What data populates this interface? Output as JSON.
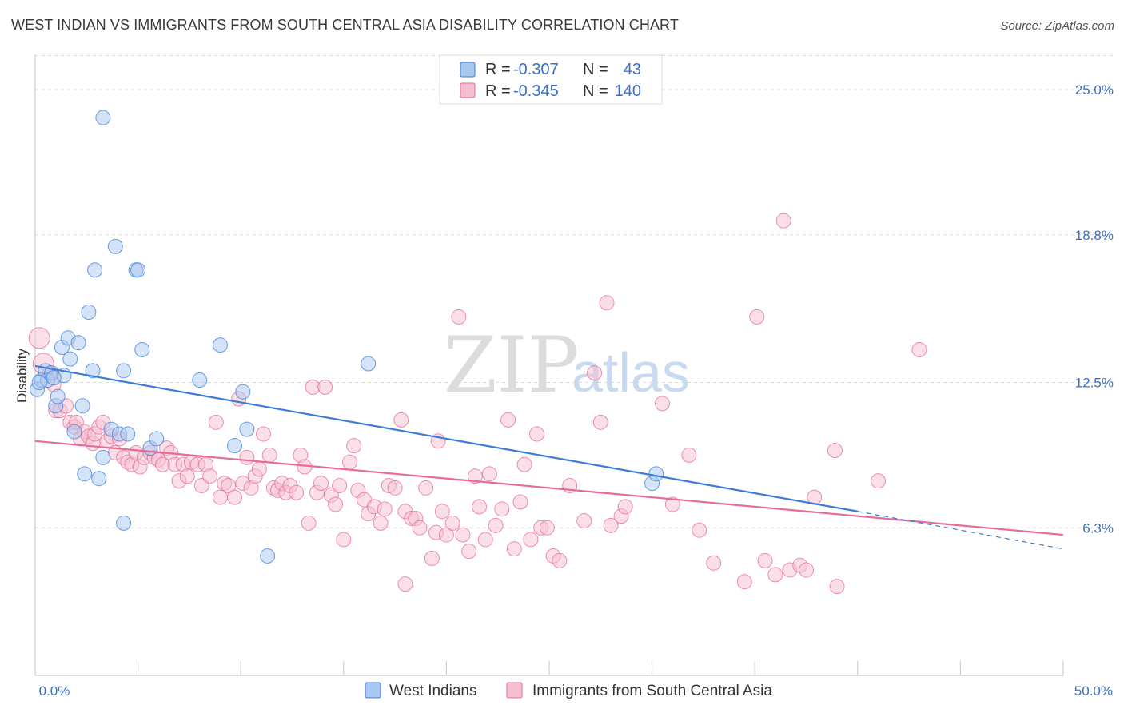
{
  "header": {
    "title": "WEST INDIAN VS IMMIGRANTS FROM SOUTH CENTRAL ASIA DISABILITY CORRELATION CHART",
    "source": "Source: ZipAtlas.com"
  },
  "watermark": {
    "zip": "ZIP",
    "atlas": "atlas"
  },
  "legend": {
    "items": [
      {
        "r_label": "R =",
        "r_value": "-0.307",
        "n_label": "N =",
        "n_value": "43"
      },
      {
        "r_label": "R =",
        "r_value": "-0.345",
        "n_label": "N =",
        "n_value": "140"
      }
    ]
  },
  "chart_data": {
    "type": "scatter",
    "title": "WEST INDIAN VS IMMIGRANTS FROM SOUTH CENTRAL ASIA DISABILITY CORRELATION CHART",
    "xlabel": "",
    "ylabel": "Disability",
    "xlim": [
      0,
      50
    ],
    "ylim": [
      0,
      26.5
    ],
    "x_tick_labels": [
      "0.0%",
      "50.0%"
    ],
    "y_ticks": [
      6.3,
      12.5,
      18.8,
      25.0
    ],
    "y_tick_labels": [
      "6.3%",
      "12.5%",
      "18.8%",
      "25.0%"
    ],
    "grid": true,
    "legend_position": "top-center",
    "colors": {
      "west_indians": "#3b7dd8",
      "south_central_asia": "#e86a96"
    },
    "series": [
      {
        "name": "West Indians",
        "color": "#3b7dd8",
        "fill": "#a9c8ef",
        "trend": {
          "x": [
            0,
            40
          ],
          "y": [
            13.2,
            7.0
          ],
          "dashed_extension_to": [
            50,
            5.4
          ]
        },
        "points": [
          [
            0.1,
            12.2
          ],
          [
            0.3,
            12.6
          ],
          [
            0.5,
            13.0
          ],
          [
            0.6,
            12.6
          ],
          [
            0.8,
            12.9
          ],
          [
            1.0,
            11.5
          ],
          [
            1.1,
            11.9
          ],
          [
            1.3,
            14.0
          ],
          [
            1.4,
            12.8
          ],
          [
            1.6,
            14.4
          ],
          [
            1.7,
            13.5
          ],
          [
            1.9,
            10.4
          ],
          [
            2.1,
            14.2
          ],
          [
            2.3,
            11.5
          ],
          [
            2.4,
            8.6
          ],
          [
            2.6,
            15.5
          ],
          [
            2.8,
            13.0
          ],
          [
            2.9,
            17.3
          ],
          [
            3.1,
            8.4
          ],
          [
            3.3,
            9.3
          ],
          [
            3.3,
            23.8
          ],
          [
            3.7,
            10.5
          ],
          [
            3.9,
            18.3
          ],
          [
            4.1,
            10.3
          ],
          [
            4.3,
            13.0
          ],
          [
            4.3,
            6.5
          ],
          [
            4.5,
            10.3
          ],
          [
            4.9,
            17.3
          ],
          [
            5.0,
            17.3
          ],
          [
            5.2,
            13.9
          ],
          [
            5.6,
            9.7
          ],
          [
            5.9,
            10.1
          ],
          [
            8.0,
            12.6
          ],
          [
            9.0,
            14.1
          ],
          [
            9.7,
            9.8
          ],
          [
            10.1,
            12.1
          ],
          [
            10.3,
            10.5
          ],
          [
            11.3,
            5.1
          ],
          [
            16.2,
            13.3
          ],
          [
            30.0,
            8.2
          ],
          [
            30.2,
            8.6
          ],
          [
            0.2,
            12.5
          ],
          [
            0.9,
            12.7
          ]
        ]
      },
      {
        "name": "Immigrants from South Central Asia",
        "color": "#e86a96",
        "fill": "#f6bfd1",
        "trend": {
          "x": [
            0,
            50
          ],
          "y": [
            10.0,
            6.0
          ]
        },
        "points": [
          [
            0.2,
            14.4
          ],
          [
            0.4,
            13.3
          ],
          [
            0.7,
            12.9
          ],
          [
            0.9,
            12.4
          ],
          [
            1.0,
            11.3
          ],
          [
            1.2,
            11.3
          ],
          [
            1.5,
            11.5
          ],
          [
            1.7,
            10.8
          ],
          [
            1.9,
            10.6
          ],
          [
            2.0,
            10.8
          ],
          [
            2.2,
            10.1
          ],
          [
            2.4,
            10.4
          ],
          [
            2.6,
            10.2
          ],
          [
            2.8,
            9.9
          ],
          [
            2.9,
            10.3
          ],
          [
            3.1,
            10.6
          ],
          [
            3.3,
            10.8
          ],
          [
            3.5,
            10.0
          ],
          [
            3.7,
            10.2
          ],
          [
            3.9,
            9.5
          ],
          [
            4.1,
            10.1
          ],
          [
            4.3,
            9.3
          ],
          [
            4.5,
            9.1
          ],
          [
            4.7,
            9.0
          ],
          [
            4.9,
            9.5
          ],
          [
            5.1,
            8.9
          ],
          [
            5.3,
            9.3
          ],
          [
            5.6,
            9.5
          ],
          [
            5.8,
            9.3
          ],
          [
            6.0,
            9.2
          ],
          [
            6.2,
            9.0
          ],
          [
            6.4,
            9.7
          ],
          [
            6.6,
            9.5
          ],
          [
            6.8,
            9.0
          ],
          [
            7.0,
            8.3
          ],
          [
            7.2,
            9.0
          ],
          [
            7.4,
            8.5
          ],
          [
            7.6,
            9.1
          ],
          [
            7.9,
            9.0
          ],
          [
            8.1,
            8.1
          ],
          [
            8.3,
            9.0
          ],
          [
            8.5,
            8.5
          ],
          [
            8.8,
            10.8
          ],
          [
            9.0,
            7.6
          ],
          [
            9.2,
            8.2
          ],
          [
            9.4,
            8.1
          ],
          [
            9.7,
            7.6
          ],
          [
            9.9,
            11.8
          ],
          [
            10.1,
            8.2
          ],
          [
            10.3,
            9.3
          ],
          [
            10.5,
            8.0
          ],
          [
            10.7,
            8.5
          ],
          [
            10.9,
            8.8
          ],
          [
            11.1,
            10.3
          ],
          [
            11.4,
            9.4
          ],
          [
            11.6,
            8.0
          ],
          [
            11.8,
            7.9
          ],
          [
            12.0,
            8.2
          ],
          [
            12.2,
            7.8
          ],
          [
            12.4,
            8.1
          ],
          [
            12.7,
            7.8
          ],
          [
            12.9,
            9.4
          ],
          [
            13.1,
            8.9
          ],
          [
            13.3,
            6.5
          ],
          [
            13.5,
            12.3
          ],
          [
            13.7,
            7.8
          ],
          [
            13.9,
            8.2
          ],
          [
            14.1,
            12.3
          ],
          [
            14.4,
            7.7
          ],
          [
            14.6,
            7.3
          ],
          [
            14.8,
            8.1
          ],
          [
            15.0,
            5.8
          ],
          [
            15.3,
            9.1
          ],
          [
            15.5,
            9.8
          ],
          [
            15.7,
            7.9
          ],
          [
            16.0,
            7.5
          ],
          [
            16.2,
            6.9
          ],
          [
            16.5,
            7.2
          ],
          [
            16.8,
            6.5
          ],
          [
            17.0,
            7.1
          ],
          [
            17.2,
            8.1
          ],
          [
            17.5,
            8.0
          ],
          [
            17.8,
            10.9
          ],
          [
            18.0,
            7.0
          ],
          [
            18.3,
            6.7
          ],
          [
            18.5,
            6.7
          ],
          [
            18.7,
            6.3
          ],
          [
            19.0,
            8.0
          ],
          [
            19.3,
            5.0
          ],
          [
            19.5,
            6.1
          ],
          [
            19.6,
            10.0
          ],
          [
            19.8,
            7.0
          ],
          [
            20.0,
            6.0
          ],
          [
            20.3,
            6.5
          ],
          [
            20.6,
            15.3
          ],
          [
            20.8,
            6.0
          ],
          [
            21.1,
            5.3
          ],
          [
            21.4,
            8.5
          ],
          [
            21.6,
            7.2
          ],
          [
            21.9,
            5.8
          ],
          [
            22.1,
            8.6
          ],
          [
            22.4,
            6.4
          ],
          [
            22.7,
            7.1
          ],
          [
            23.0,
            10.9
          ],
          [
            23.3,
            5.4
          ],
          [
            23.6,
            7.4
          ],
          [
            23.8,
            9.0
          ],
          [
            24.1,
            5.8
          ],
          [
            24.4,
            10.3
          ],
          [
            24.6,
            6.3
          ],
          [
            24.9,
            6.3
          ],
          [
            25.2,
            5.1
          ],
          [
            25.5,
            4.9
          ],
          [
            26.0,
            8.1
          ],
          [
            26.7,
            6.6
          ],
          [
            27.2,
            12.9
          ],
          [
            27.5,
            10.8
          ],
          [
            27.8,
            15.9
          ],
          [
            28.0,
            6.4
          ],
          [
            28.5,
            6.8
          ],
          [
            28.7,
            7.2
          ],
          [
            30.5,
            11.6
          ],
          [
            31.0,
            7.3
          ],
          [
            31.8,
            9.4
          ],
          [
            32.3,
            6.2
          ],
          [
            33.0,
            4.8
          ],
          [
            34.5,
            4.0
          ],
          [
            35.1,
            15.3
          ],
          [
            35.5,
            4.9
          ],
          [
            36.0,
            4.3
          ],
          [
            36.4,
            19.4
          ],
          [
            36.7,
            4.5
          ],
          [
            37.2,
            4.7
          ],
          [
            37.5,
            4.5
          ],
          [
            37.9,
            7.6
          ],
          [
            39.0,
            3.8
          ],
          [
            38.9,
            9.6
          ],
          [
            41.0,
            8.3
          ],
          [
            43.0,
            13.9
          ],
          [
            18.0,
            3.9
          ]
        ]
      }
    ]
  },
  "bottom_legend": {
    "items": [
      {
        "label": "West Indians"
      },
      {
        "label": "Immigrants from South Central Asia"
      }
    ]
  }
}
